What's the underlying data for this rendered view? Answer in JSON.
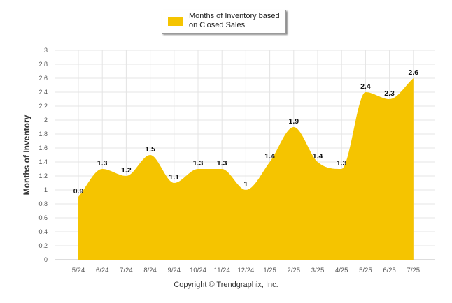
{
  "legend": {
    "label": "Months of Inventory based on Closed Sales",
    "color": "#F5C400"
  },
  "footer": {
    "copyright": "Copyright © Trendgraphix, Inc."
  },
  "chart_data": {
    "type": "area",
    "categories": [
      "5/24",
      "6/24",
      "7/24",
      "8/24",
      "9/24",
      "10/24",
      "11/24",
      "12/24",
      "1/25",
      "2/25",
      "3/25",
      "4/25",
      "5/25",
      "6/25",
      "7/25"
    ],
    "series": [
      {
        "name": "Months of Inventory based on Closed Sales",
        "values": [
          0.9,
          1.3,
          1.2,
          1.5,
          1.1,
          1.3,
          1.3,
          1.0,
          1.4,
          1.9,
          1.4,
          1.3,
          2.4,
          2.3,
          2.6
        ],
        "labels": [
          "0.9",
          "1.3",
          "1.2",
          "1.5",
          "1.1",
          "1.3",
          "1.3",
          "1",
          "1.4",
          "1.9",
          "1.4",
          "1.3",
          "2.4",
          "2.3",
          "2.6"
        ]
      }
    ],
    "ylabel": "Months of Inventory",
    "xlabel": "",
    "ylim": [
      0,
      3
    ],
    "yticks": [
      "0",
      "0.2",
      "0.4",
      "0.6",
      "0.8",
      "1",
      "1.2",
      "1.4",
      "1.6",
      "1.8",
      "2",
      "2.2",
      "2.4",
      "2.6",
      "2.8",
      "3"
    ],
    "grid": true,
    "smooth": true,
    "fill_color": "#F5C400"
  }
}
